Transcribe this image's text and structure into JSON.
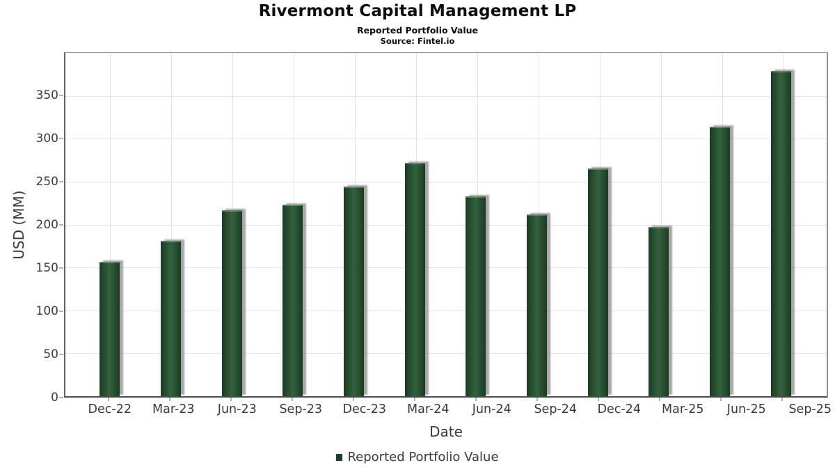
{
  "header": {
    "title": "Rivermont Capital Management LP",
    "subtitle": "Reported Portfolio Value",
    "source": "Source: Fintel.io"
  },
  "chart_data": {
    "type": "bar",
    "title": "Rivermont Capital Management LP",
    "subtitle": "Reported Portfolio Value",
    "source": "Source: Fintel.io",
    "categories": [
      "Dec-22",
      "Mar-23",
      "Jun-23",
      "Sep-23",
      "Dec-23",
      "Mar-24",
      "Jun-24",
      "Sep-24",
      "Dec-24",
      "Mar-25",
      "Jun-25",
      "Sep-25"
    ],
    "values": [
      157,
      181,
      217,
      223,
      244,
      272,
      233,
      212,
      265,
      197,
      314,
      379
    ],
    "xlabel": "Date",
    "ylabel": "USD (MM)",
    "ylim": [
      0,
      400
    ],
    "yticks": [
      0,
      50,
      100,
      150,
      200,
      250,
      300,
      350
    ],
    "grid": true,
    "legend": {
      "label": "Reported Portfolio Value",
      "position": "bottom"
    },
    "colors": {
      "bar_center": "#2e5b37",
      "bar_edge": "#1b3a23",
      "shadow": "#8f8f8f",
      "grid": "#e4e4e4",
      "text": "#3a3a3a",
      "title": "#0d0d0d",
      "legend_marker": "#20402a"
    }
  }
}
